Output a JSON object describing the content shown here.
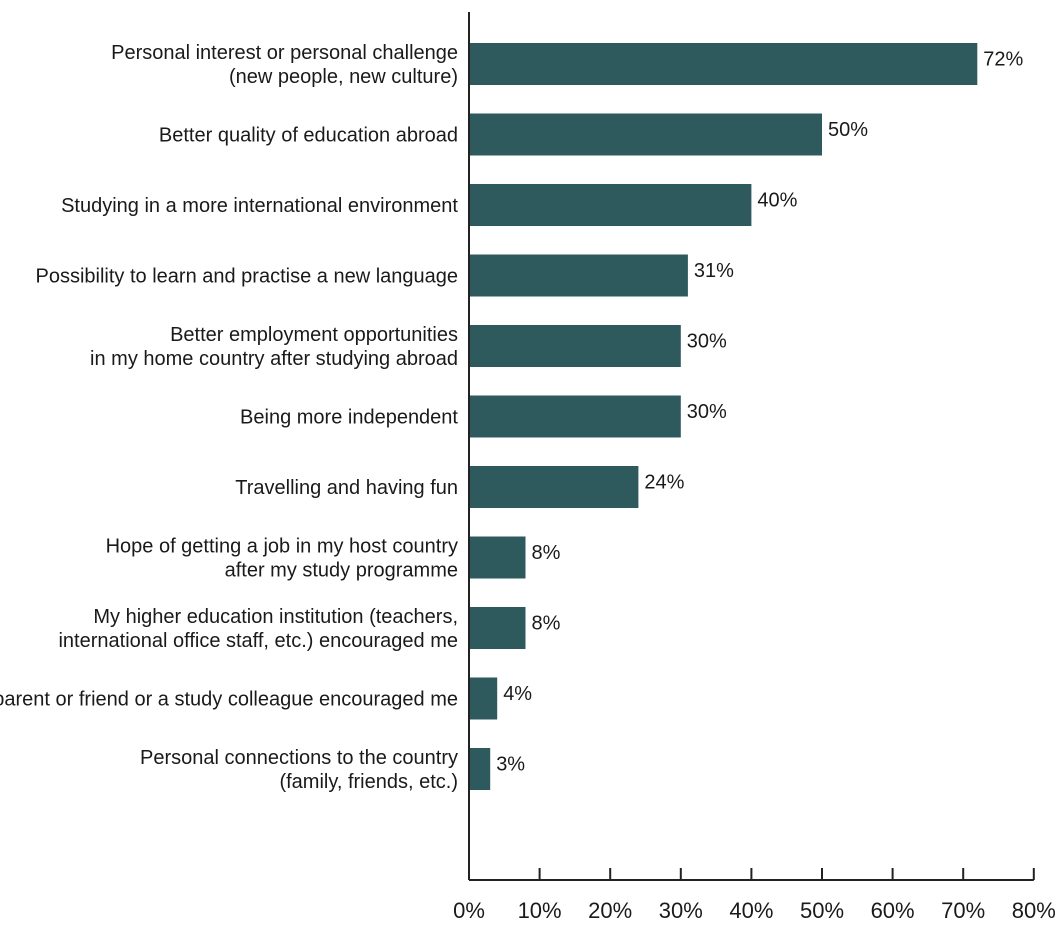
{
  "chart_data": {
    "type": "bar",
    "orientation": "horizontal",
    "categories": [
      [
        "Personal interest or personal challenge",
        "(new people, new culture)"
      ],
      [
        "Better quality of education abroad"
      ],
      [
        "Studying in a more international environment"
      ],
      [
        "Possibility to learn and practise a new language"
      ],
      [
        "Better employment opportunities",
        "in my home country after studying abroad"
      ],
      [
        "Being more independent"
      ],
      [
        "Travelling and having fun"
      ],
      [
        "Hope of getting a job in my host country",
        "after my study programme"
      ],
      [
        "My higher education institution (teachers,",
        "international office staff, etc.) encouraged me"
      ],
      [
        "A parent or friend or a study colleague encouraged me"
      ],
      [
        "Personal connections to the country",
        "(family, friends, etc.)"
      ]
    ],
    "values": [
      72,
      50,
      40,
      31,
      30,
      30,
      24,
      8,
      8,
      4,
      3
    ],
    "value_labels": [
      "72%",
      "50%",
      "40%",
      "31%",
      "30%",
      "30%",
      "24%",
      "8%",
      "8%",
      "4%",
      "3%"
    ],
    "xlim": [
      0,
      80
    ],
    "xticks": [
      0,
      10,
      20,
      30,
      40,
      50,
      60,
      70,
      80
    ],
    "xtick_labels": [
      "0%",
      "10%",
      "20%",
      "30%",
      "40%",
      "50%",
      "60%",
      "70%",
      "80%"
    ],
    "title": "",
    "xlabel": "",
    "ylabel": "",
    "grid": false,
    "legend": "none",
    "bar_color": "#2e5a5e",
    "axis_color": "#222222",
    "text_color": "#1a1a1a"
  }
}
